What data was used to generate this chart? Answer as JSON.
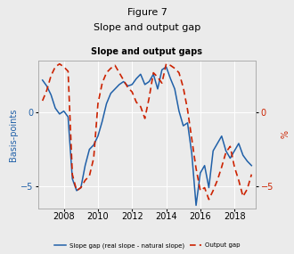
{
  "title_line1": "Figure 7",
  "title_line2": "Slope and output gap",
  "subtitle": "Slope and output gaps",
  "ylabel_left": "Basis-points",
  "ylabel_right": "%",
  "ylim_left": [
    -6.5,
    3.5
  ],
  "ylim_right": [
    -6.5,
    3.5
  ],
  "yticks_left": [
    -5,
    0
  ],
  "yticks_right": [
    -5,
    0
  ],
  "legend_slope": "Slope gap (real slope - natural slope)",
  "legend_output": "Output gap",
  "color_slope": "#2060a8",
  "color_output": "#cc2200",
  "bg_color": "#ebebeb",
  "plot_bg": "#ebebeb",
  "slope_x": [
    2006.75,
    2007.0,
    2007.25,
    2007.5,
    2007.75,
    2008.0,
    2008.25,
    2008.5,
    2008.75,
    2009.0,
    2009.25,
    2009.5,
    2009.75,
    2010.0,
    2010.25,
    2010.5,
    2010.75,
    2011.0,
    2011.25,
    2011.5,
    2011.75,
    2012.0,
    2012.25,
    2012.5,
    2012.75,
    2013.0,
    2013.25,
    2013.5,
    2013.75,
    2014.0,
    2014.25,
    2014.5,
    2014.75,
    2015.0,
    2015.25,
    2015.5,
    2015.75,
    2016.0,
    2016.25,
    2016.5,
    2016.75,
    2017.0,
    2017.25,
    2017.5,
    2017.75,
    2018.0,
    2018.25,
    2018.5,
    2018.75,
    2019.0
  ],
  "slope_y": [
    2.2,
    1.8,
    1.2,
    0.3,
    -0.1,
    0.1,
    -0.3,
    -4.5,
    -5.3,
    -5.1,
    -3.6,
    -2.5,
    -2.2,
    -1.6,
    -0.6,
    0.6,
    1.3,
    1.6,
    1.9,
    2.1,
    1.8,
    1.9,
    2.3,
    2.6,
    1.9,
    2.1,
    2.6,
    1.6,
    2.9,
    3.1,
    2.3,
    1.6,
    0.1,
    -0.9,
    -0.7,
    -2.8,
    -6.3,
    -4.1,
    -3.6,
    -5.1,
    -2.6,
    -2.1,
    -1.6,
    -2.6,
    -3.1,
    -2.6,
    -2.1,
    -2.9,
    -3.3,
    -3.6
  ],
  "output_x": [
    2006.75,
    2007.0,
    2007.25,
    2007.5,
    2007.75,
    2008.0,
    2008.25,
    2008.5,
    2008.75,
    2009.0,
    2009.25,
    2009.5,
    2009.75,
    2010.0,
    2010.25,
    2010.5,
    2010.75,
    2011.0,
    2011.25,
    2011.5,
    2011.75,
    2012.0,
    2012.25,
    2012.5,
    2012.75,
    2013.0,
    2013.25,
    2013.5,
    2013.75,
    2014.0,
    2014.25,
    2014.5,
    2014.75,
    2015.0,
    2015.25,
    2015.5,
    2015.75,
    2016.0,
    2016.25,
    2016.5,
    2016.75,
    2017.0,
    2017.25,
    2017.5,
    2017.75,
    2018.0,
    2018.25,
    2018.5,
    2018.75,
    2019.0
  ],
  "output_y": [
    0.8,
    1.5,
    2.5,
    3.1,
    3.3,
    3.1,
    2.8,
    -4.2,
    -5.3,
    -5.1,
    -4.6,
    -4.3,
    -3.1,
    0.6,
    2.0,
    2.7,
    3.0,
    3.2,
    2.7,
    2.2,
    1.7,
    1.4,
    0.7,
    0.4,
    -0.4,
    1.0,
    2.7,
    2.4,
    2.0,
    3.3,
    3.2,
    3.0,
    2.7,
    1.7,
    0.2,
    -1.8,
    -3.8,
    -5.3,
    -5.1,
    -5.9,
    -5.3,
    -4.6,
    -3.7,
    -2.7,
    -2.3,
    -3.7,
    -4.6,
    -5.7,
    -5.2,
    -4.2
  ],
  "xlim": [
    2006.5,
    2019.25
  ],
  "xticks": [
    2008,
    2010,
    2012,
    2014,
    2016,
    2018
  ]
}
